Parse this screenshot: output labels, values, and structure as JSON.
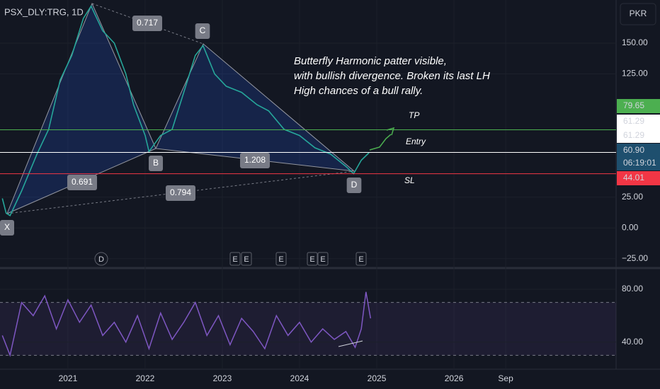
{
  "header": {
    "symbol": "PSX_DLY:TRG, 1D",
    "currency": "PKR"
  },
  "price_chart": {
    "x": [
      2020.15,
      2020.2,
      2020.25,
      2020.4,
      2020.6,
      2020.75,
      2020.9,
      2021.05,
      2021.2,
      2021.3,
      2021.45,
      2021.6,
      2021.75,
      2021.85,
      2022.0,
      2022.05,
      2022.2,
      2022.35,
      2022.5,
      2022.65,
      2022.75,
      2022.9,
      2023.05,
      2023.25,
      2023.45,
      2023.6,
      2023.8,
      2024.0,
      2024.2,
      2024.4,
      2024.6,
      2024.7,
      2024.8,
      2024.9
    ],
    "values": [
      24,
      12,
      10,
      30,
      60,
      80,
      120,
      140,
      170,
      180,
      160,
      150,
      125,
      100,
      75,
      62,
      75,
      80,
      110,
      140,
      148,
      125,
      115,
      110,
      100,
      95,
      80,
      75,
      65,
      60,
      50,
      44,
      55,
      61
    ],
    "ylim": [
      -32,
      185
    ],
    "yticks": [
      {
        "value": 150,
        "label": "150.00"
      },
      {
        "value": 125,
        "label": "125.00"
      },
      {
        "value": 25,
        "label": "25.00"
      },
      {
        "value": 0,
        "label": "0.00"
      },
      {
        "value": -25,
        "label": "−25.00"
      }
    ],
    "xlim": [
      2020.12,
      2028.1
    ],
    "xticks": [
      2021,
      2022,
      2023,
      2024,
      2025,
      2026,
      {
        "value": 2026.67,
        "label": "Sep"
      }
    ],
    "price_tags": [
      {
        "value": 79.65,
        "label": "79.65"
      },
      {
        "value": 61.29,
        "label": "61.29"
      },
      {
        "value": 61.29,
        "label": "61.29"
      },
      {
        "value": 60.9,
        "label": "60.90"
      },
      {
        "value": 44.01,
        "label": "44.01"
      }
    ],
    "countdown": "06:19:01"
  },
  "rsi": {
    "x": [
      2020.15,
      2020.25,
      2020.4,
      2020.55,
      2020.7,
      2020.85,
      2021.0,
      2021.15,
      2021.3,
      2021.45,
      2021.6,
      2021.75,
      2021.9,
      2022.05,
      2022.2,
      2022.35,
      2022.5,
      2022.65,
      2022.8,
      2022.95,
      2023.1,
      2023.25,
      2023.4,
      2023.55,
      2023.7,
      2023.85,
      2024.0,
      2024.15,
      2024.3,
      2024.45,
      2024.6,
      2024.72,
      2024.8,
      2024.86,
      2024.92
    ],
    "values": [
      45,
      30,
      70,
      60,
      75,
      50,
      72,
      55,
      68,
      45,
      55,
      40,
      60,
      35,
      62,
      42,
      55,
      70,
      45,
      60,
      38,
      58,
      48,
      35,
      60,
      45,
      55,
      40,
      50,
      42,
      48,
      36,
      50,
      78,
      58
    ],
    "ylim": [
      20,
      95
    ],
    "yticks": [
      {
        "value": 80,
        "label": "80.00"
      },
      {
        "value": 40,
        "label": "40.00"
      }
    ],
    "bands": [
      70,
      30
    ]
  },
  "pattern": {
    "points": [
      "X",
      "B",
      "C",
      "D"
    ],
    "ratios": [
      "0.717",
      "0.691",
      "0.794",
      "1.208"
    ]
  },
  "annotation": [
    "Butterfly Harmonic patter visible,",
    "with bullish divergence. Broken its last LH",
    "High chances of a bull rally."
  ],
  "levels": [
    "TP",
    "Entry",
    "SL"
  ],
  "events": [
    "D",
    "E",
    "E",
    "E",
    "E",
    "E",
    "E"
  ]
}
